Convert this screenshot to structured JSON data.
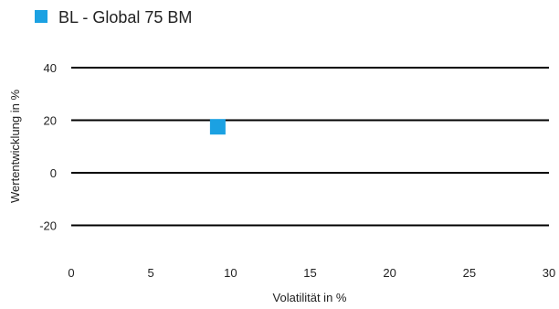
{
  "chart_data": {
    "type": "scatter",
    "title": "",
    "xlabel": "Volatilität in %",
    "ylabel": "Wertentwicklung in %",
    "xlim": [
      0,
      30
    ],
    "ylim": [
      -27,
      45
    ],
    "xticks": [
      0,
      5,
      10,
      15,
      20,
      25,
      30
    ],
    "yticks": [
      40,
      20,
      0,
      -20
    ],
    "grid": "horizontal",
    "legend_position": "top-left",
    "series": [
      {
        "name": "BL - Global 75 BM",
        "color": "#1ba1e2",
        "marker": "square",
        "points": [
          {
            "x": 9.2,
            "y": 17.5
          }
        ]
      }
    ]
  }
}
